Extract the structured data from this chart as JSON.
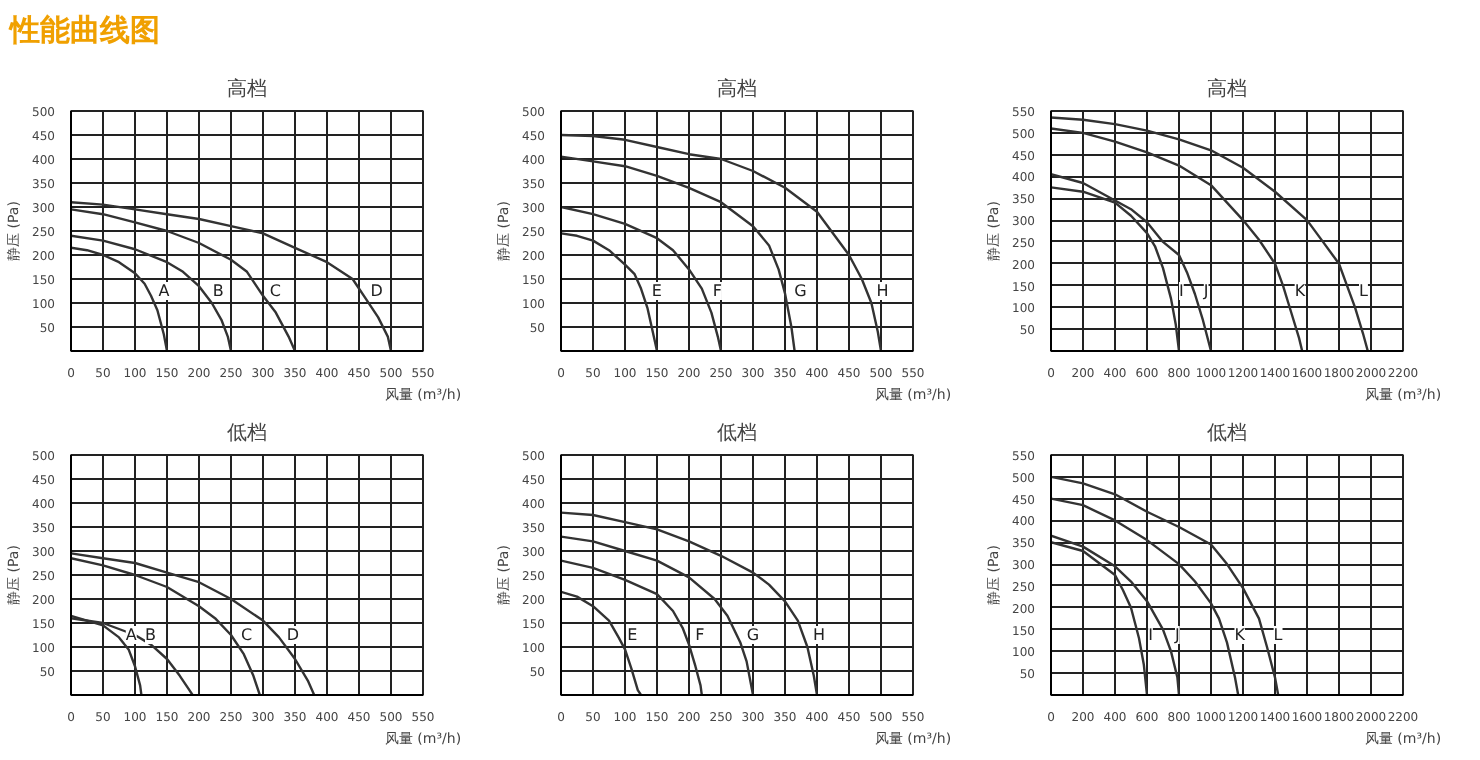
{
  "chart_data": [
    {
      "type": "line",
      "title": "高档",
      "annotations": [
        "性能曲线图"
      ],
      "xlabel": "风量 (m³/h)",
      "ylabel": "静压 (Pa)",
      "xlim": [
        0,
        550
      ],
      "ylim": [
        0,
        500
      ],
      "xticks": [
        0,
        50,
        100,
        150,
        200,
        250,
        300,
        350,
        400,
        450,
        500,
        550
      ],
      "yticks": [
        50,
        100,
        150,
        200,
        250,
        300,
        350,
        400,
        450,
        500
      ],
      "grid": true,
      "line_style": "solid",
      "series": [
        {
          "name": "A",
          "color": "#333333",
          "x": [
            0,
            25,
            50,
            75,
            100,
            115,
            125,
            135,
            145,
            150
          ],
          "values": [
            215,
            210,
            200,
            185,
            162,
            140,
            115,
            85,
            35,
            0
          ]
        },
        {
          "name": "B",
          "color": "#333333",
          "x": [
            0,
            50,
            100,
            150,
            175,
            200,
            220,
            235,
            245,
            250
          ],
          "values": [
            240,
            230,
            212,
            185,
            165,
            135,
            100,
            65,
            30,
            0
          ]
        },
        {
          "name": "C",
          "color": "#333333",
          "x": [
            0,
            50,
            100,
            150,
            200,
            250,
            275,
            300,
            320,
            340,
            350
          ],
          "values": [
            295,
            285,
            268,
            250,
            225,
            190,
            165,
            115,
            80,
            30,
            0
          ]
        },
        {
          "name": "D",
          "color": "#333333",
          "x": [
            0,
            50,
            100,
            150,
            200,
            250,
            300,
            350,
            400,
            440,
            460,
            480,
            495,
            500
          ],
          "values": [
            310,
            305,
            295,
            285,
            275,
            260,
            245,
            215,
            185,
            150,
            110,
            70,
            30,
            0
          ]
        }
      ]
    },
    {
      "type": "line",
      "title": "高档",
      "xlabel": "风量 (m³/h)",
      "ylabel": "静压 (Pa)",
      "xlim": [
        0,
        550
      ],
      "ylim": [
        0,
        500
      ],
      "xticks": [
        0,
        50,
        100,
        150,
        200,
        250,
        300,
        350,
        400,
        450,
        500,
        550
      ],
      "yticks": [
        50,
        100,
        150,
        200,
        250,
        300,
        350,
        400,
        450,
        500
      ],
      "grid": true,
      "line_style": "solid",
      "series": [
        {
          "name": "E",
          "color": "#333333",
          "x": [
            0,
            25,
            50,
            75,
            100,
            115,
            125,
            135,
            145,
            150
          ],
          "values": [
            245,
            240,
            230,
            210,
            180,
            160,
            130,
            90,
            30,
            0
          ]
        },
        {
          "name": "F",
          "color": "#333333",
          "x": [
            0,
            50,
            100,
            150,
            175,
            200,
            220,
            235,
            245,
            250
          ],
          "values": [
            300,
            285,
            265,
            235,
            210,
            170,
            130,
            80,
            30,
            0
          ]
        },
        {
          "name": "G",
          "color": "#333333",
          "x": [
            0,
            50,
            100,
            150,
            200,
            250,
            300,
            325,
            340,
            350,
            360,
            365
          ],
          "values": [
            405,
            395,
            385,
            365,
            340,
            310,
            260,
            220,
            170,
            120,
            50,
            0
          ]
        },
        {
          "name": "H",
          "color": "#333333",
          "x": [
            0,
            50,
            100,
            150,
            200,
            250,
            300,
            350,
            400,
            450,
            470,
            485,
            495,
            500
          ],
          "values": [
            450,
            448,
            440,
            425,
            410,
            400,
            375,
            340,
            290,
            200,
            150,
            100,
            40,
            0
          ]
        }
      ]
    },
    {
      "type": "line",
      "title": "高档",
      "xlabel": "风量 (m³/h)",
      "ylabel": "静压 (Pa)",
      "xlim": [
        0,
        2200
      ],
      "ylim": [
        0,
        550
      ],
      "xticks": [
        0,
        200,
        400,
        600,
        800,
        1000,
        1200,
        1400,
        1600,
        1800,
        2000,
        2200
      ],
      "yticks": [
        50,
        100,
        150,
        200,
        250,
        300,
        350,
        400,
        450,
        500,
        550
      ],
      "grid": true,
      "line_style": "solid",
      "series": [
        {
          "name": "I",
          "color": "#333333",
          "x": [
            0,
            200,
            400,
            500,
            600,
            650,
            700,
            750,
            780,
            800
          ],
          "values": [
            375,
            365,
            340,
            310,
            270,
            240,
            190,
            120,
            60,
            0
          ]
        },
        {
          "name": "J",
          "color": "#333333",
          "x": [
            0,
            200,
            400,
            500,
            600,
            700,
            800,
            850,
            900,
            950,
            1000
          ],
          "values": [
            405,
            385,
            345,
            325,
            295,
            250,
            220,
            180,
            130,
            70,
            0
          ]
        },
        {
          "name": "K",
          "color": "#333333",
          "x": [
            0,
            200,
            400,
            600,
            800,
            1000,
            1100,
            1200,
            1300,
            1400,
            1450,
            1500,
            1550,
            1570
          ],
          "values": [
            510,
            500,
            480,
            455,
            425,
            380,
            340,
            300,
            255,
            200,
            150,
            90,
            30,
            0
          ]
        },
        {
          "name": "L",
          "color": "#333333",
          "x": [
            0,
            200,
            400,
            600,
            800,
            1000,
            1200,
            1400,
            1600,
            1700,
            1800,
            1850,
            1900,
            1950,
            1980
          ],
          "values": [
            535,
            530,
            520,
            505,
            485,
            460,
            420,
            365,
            300,
            250,
            200,
            150,
            100,
            40,
            0
          ]
        }
      ]
    },
    {
      "type": "line",
      "title": "低档",
      "xlabel": "风量 (m³/h)",
      "ylabel": "静压 (Pa)",
      "xlim": [
        0,
        550
      ],
      "ylim": [
        0,
        500
      ],
      "xticks": [
        0,
        50,
        100,
        150,
        200,
        250,
        300,
        350,
        400,
        450,
        500,
        550
      ],
      "yticks": [
        50,
        100,
        150,
        200,
        250,
        300,
        350,
        400,
        450,
        500
      ],
      "grid": true,
      "line_style": "solid",
      "series": [
        {
          "name": "A",
          "color": "#333333",
          "x": [
            0,
            25,
            50,
            75,
            90,
            100,
            108,
            110
          ],
          "values": [
            165,
            155,
            145,
            120,
            95,
            60,
            20,
            0
          ]
        },
        {
          "name": "B",
          "color": "#333333",
          "x": [
            0,
            50,
            100,
            125,
            150,
            170,
            185,
            190
          ],
          "values": [
            160,
            150,
            125,
            105,
            75,
            40,
            10,
            0
          ]
        },
        {
          "name": "C",
          "color": "#333333",
          "x": [
            0,
            50,
            100,
            150,
            200,
            225,
            250,
            270,
            285,
            295
          ],
          "values": [
            285,
            270,
            250,
            225,
            185,
            160,
            125,
            85,
            40,
            0
          ]
        },
        {
          "name": "D",
          "color": "#333333",
          "x": [
            0,
            50,
            100,
            150,
            200,
            250,
            300,
            325,
            350,
            370,
            380
          ],
          "values": [
            295,
            285,
            275,
            255,
            235,
            200,
            155,
            120,
            75,
            30,
            0
          ]
        }
      ]
    },
    {
      "type": "line",
      "title": "低档",
      "xlabel": "风量 (m³/h)",
      "ylabel": "静压 (Pa)",
      "xlim": [
        0,
        550
      ],
      "ylim": [
        0,
        500
      ],
      "xticks": [
        0,
        50,
        100,
        150,
        200,
        250,
        300,
        350,
        400,
        450,
        500,
        550
      ],
      "yticks": [
        50,
        100,
        150,
        200,
        250,
        300,
        350,
        400,
        450,
        500
      ],
      "grid": true,
      "line_style": "solid",
      "series": [
        {
          "name": "E",
          "color": "#333333",
          "x": [
            0,
            25,
            50,
            75,
            90,
            100,
            110,
            120,
            125
          ],
          "values": [
            215,
            205,
            185,
            155,
            120,
            95,
            55,
            10,
            0
          ]
        },
        {
          "name": "F",
          "color": "#333333",
          "x": [
            0,
            50,
            100,
            150,
            175,
            190,
            200,
            210,
            218,
            220
          ],
          "values": [
            280,
            265,
            240,
            210,
            175,
            140,
            105,
            60,
            20,
            0
          ]
        },
        {
          "name": "G",
          "color": "#333333",
          "x": [
            0,
            50,
            100,
            150,
            200,
            240,
            260,
            280,
            290,
            300
          ],
          "values": [
            330,
            320,
            300,
            280,
            245,
            200,
            165,
            110,
            70,
            0
          ]
        },
        {
          "name": "H",
          "color": "#333333",
          "x": [
            0,
            50,
            100,
            150,
            200,
            250,
            300,
            325,
            350,
            370,
            385,
            395,
            400
          ],
          "values": [
            380,
            375,
            360,
            345,
            320,
            290,
            255,
            230,
            195,
            155,
            100,
            40,
            0
          ]
        }
      ]
    },
    {
      "type": "line",
      "title": "低档",
      "xlabel": "风量 (m³/h)",
      "ylabel": "静压 (Pa)",
      "xlim": [
        0,
        2200
      ],
      "ylim": [
        0,
        550
      ],
      "xticks": [
        0,
        200,
        400,
        600,
        800,
        1000,
        1200,
        1400,
        1600,
        1800,
        2000,
        2200
      ],
      "yticks": [
        50,
        100,
        150,
        200,
        250,
        300,
        350,
        400,
        450,
        500,
        550
      ],
      "grid": true,
      "line_style": "solid",
      "series": [
        {
          "name": "I",
          "color": "#333333",
          "x": [
            0,
            200,
            400,
            450,
            500,
            550,
            580,
            600
          ],
          "values": [
            350,
            330,
            275,
            240,
            200,
            130,
            70,
            0
          ]
        },
        {
          "name": "J",
          "color": "#333333",
          "x": [
            0,
            200,
            400,
            500,
            600,
            700,
            750,
            790,
            800
          ],
          "values": [
            365,
            340,
            295,
            260,
            215,
            150,
            100,
            40,
            0
          ]
        },
        {
          "name": "K",
          "color": "#333333",
          "x": [
            0,
            200,
            400,
            600,
            800,
            900,
            1000,
            1050,
            1100,
            1150,
            1170
          ],
          "values": [
            450,
            435,
            400,
            355,
            300,
            260,
            210,
            175,
            120,
            40,
            0
          ]
        },
        {
          "name": "L",
          "color": "#333333",
          "x": [
            0,
            200,
            400,
            600,
            800,
            1000,
            1100,
            1200,
            1300,
            1350,
            1400,
            1420
          ],
          "values": [
            500,
            485,
            460,
            420,
            385,
            345,
            300,
            245,
            175,
            110,
            40,
            0
          ]
        }
      ]
    }
  ]
}
